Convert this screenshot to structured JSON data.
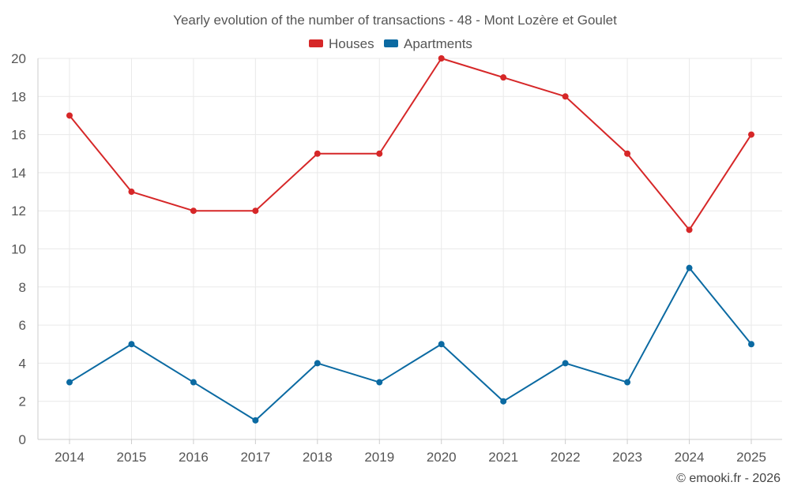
{
  "chart_data": {
    "type": "line",
    "title": "Yearly evolution of the number of transactions - 48 - Mont Lozère et Goulet",
    "categories": [
      "2014",
      "2015",
      "2016",
      "2017",
      "2018",
      "2019",
      "2020",
      "2021",
      "2022",
      "2023",
      "2024",
      "2025"
    ],
    "series": [
      {
        "name": "Houses",
        "color": "#d62728",
        "values": [
          17,
          13,
          12,
          12,
          15,
          15,
          20,
          19,
          18,
          15,
          11,
          16
        ]
      },
      {
        "name": "Apartments",
        "color": "#0b6aa2",
        "values": [
          3,
          5,
          3,
          1,
          4,
          3,
          5,
          2,
          4,
          3,
          9,
          5
        ]
      }
    ],
    "ylim": [
      0,
      20
    ],
    "yticks": [
      "0",
      "2",
      "4",
      "6",
      "8",
      "10",
      "12",
      "14",
      "16",
      "18",
      "20"
    ],
    "xlabel": "",
    "ylabel": "",
    "grid": true,
    "legend": "top-center"
  },
  "credit": "© emooki.fr - 2026"
}
